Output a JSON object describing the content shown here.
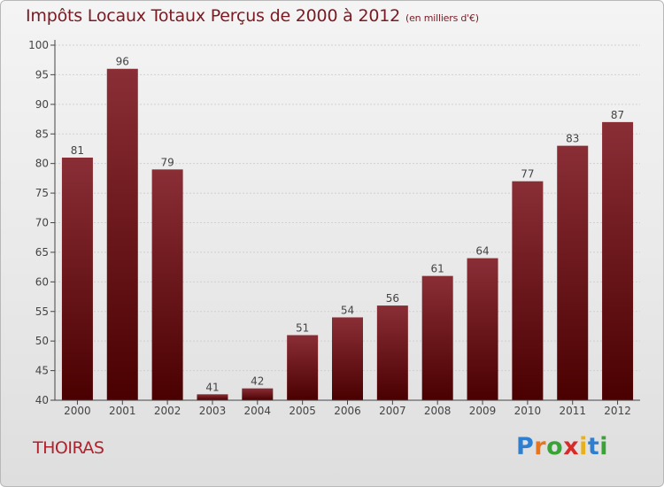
{
  "header": {
    "title": "Impôts Locaux Totaux Perçus de 2000 à 2012",
    "unit": "(en milliers d'€)"
  },
  "footer": {
    "town": "THOIRAS",
    "logo_letters": [
      "P",
      "r",
      "o",
      "x",
      "i",
      "t",
      "i"
    ],
    "logo_colors": [
      "#2f7fd0",
      "#e8741c",
      "#3aa336",
      "#d92a2a",
      "#e8b11c",
      "#2f7fd0",
      "#3aa336"
    ]
  },
  "colors": {
    "bar_top": "#8a2e36",
    "bar_bottom": "#4a0000",
    "axis": "#444444",
    "grid": "#d0d0d0",
    "label": "#444444"
  },
  "chart_data": {
    "type": "bar",
    "title": "Impôts Locaux Totaux Perçus de 2000 à 2012",
    "xlabel": "",
    "ylabel": "",
    "categories": [
      "2000",
      "2001",
      "2002",
      "2003",
      "2004",
      "2005",
      "2006",
      "2007",
      "2008",
      "2009",
      "2010",
      "2011",
      "2012"
    ],
    "values": [
      81,
      96,
      79,
      41,
      42,
      51,
      54,
      56,
      61,
      64,
      77,
      83,
      87
    ],
    "ylim": [
      40,
      100
    ],
    "yticks": [
      40,
      45,
      50,
      55,
      60,
      65,
      70,
      75,
      80,
      85,
      90,
      95,
      100
    ],
    "grid": true
  }
}
